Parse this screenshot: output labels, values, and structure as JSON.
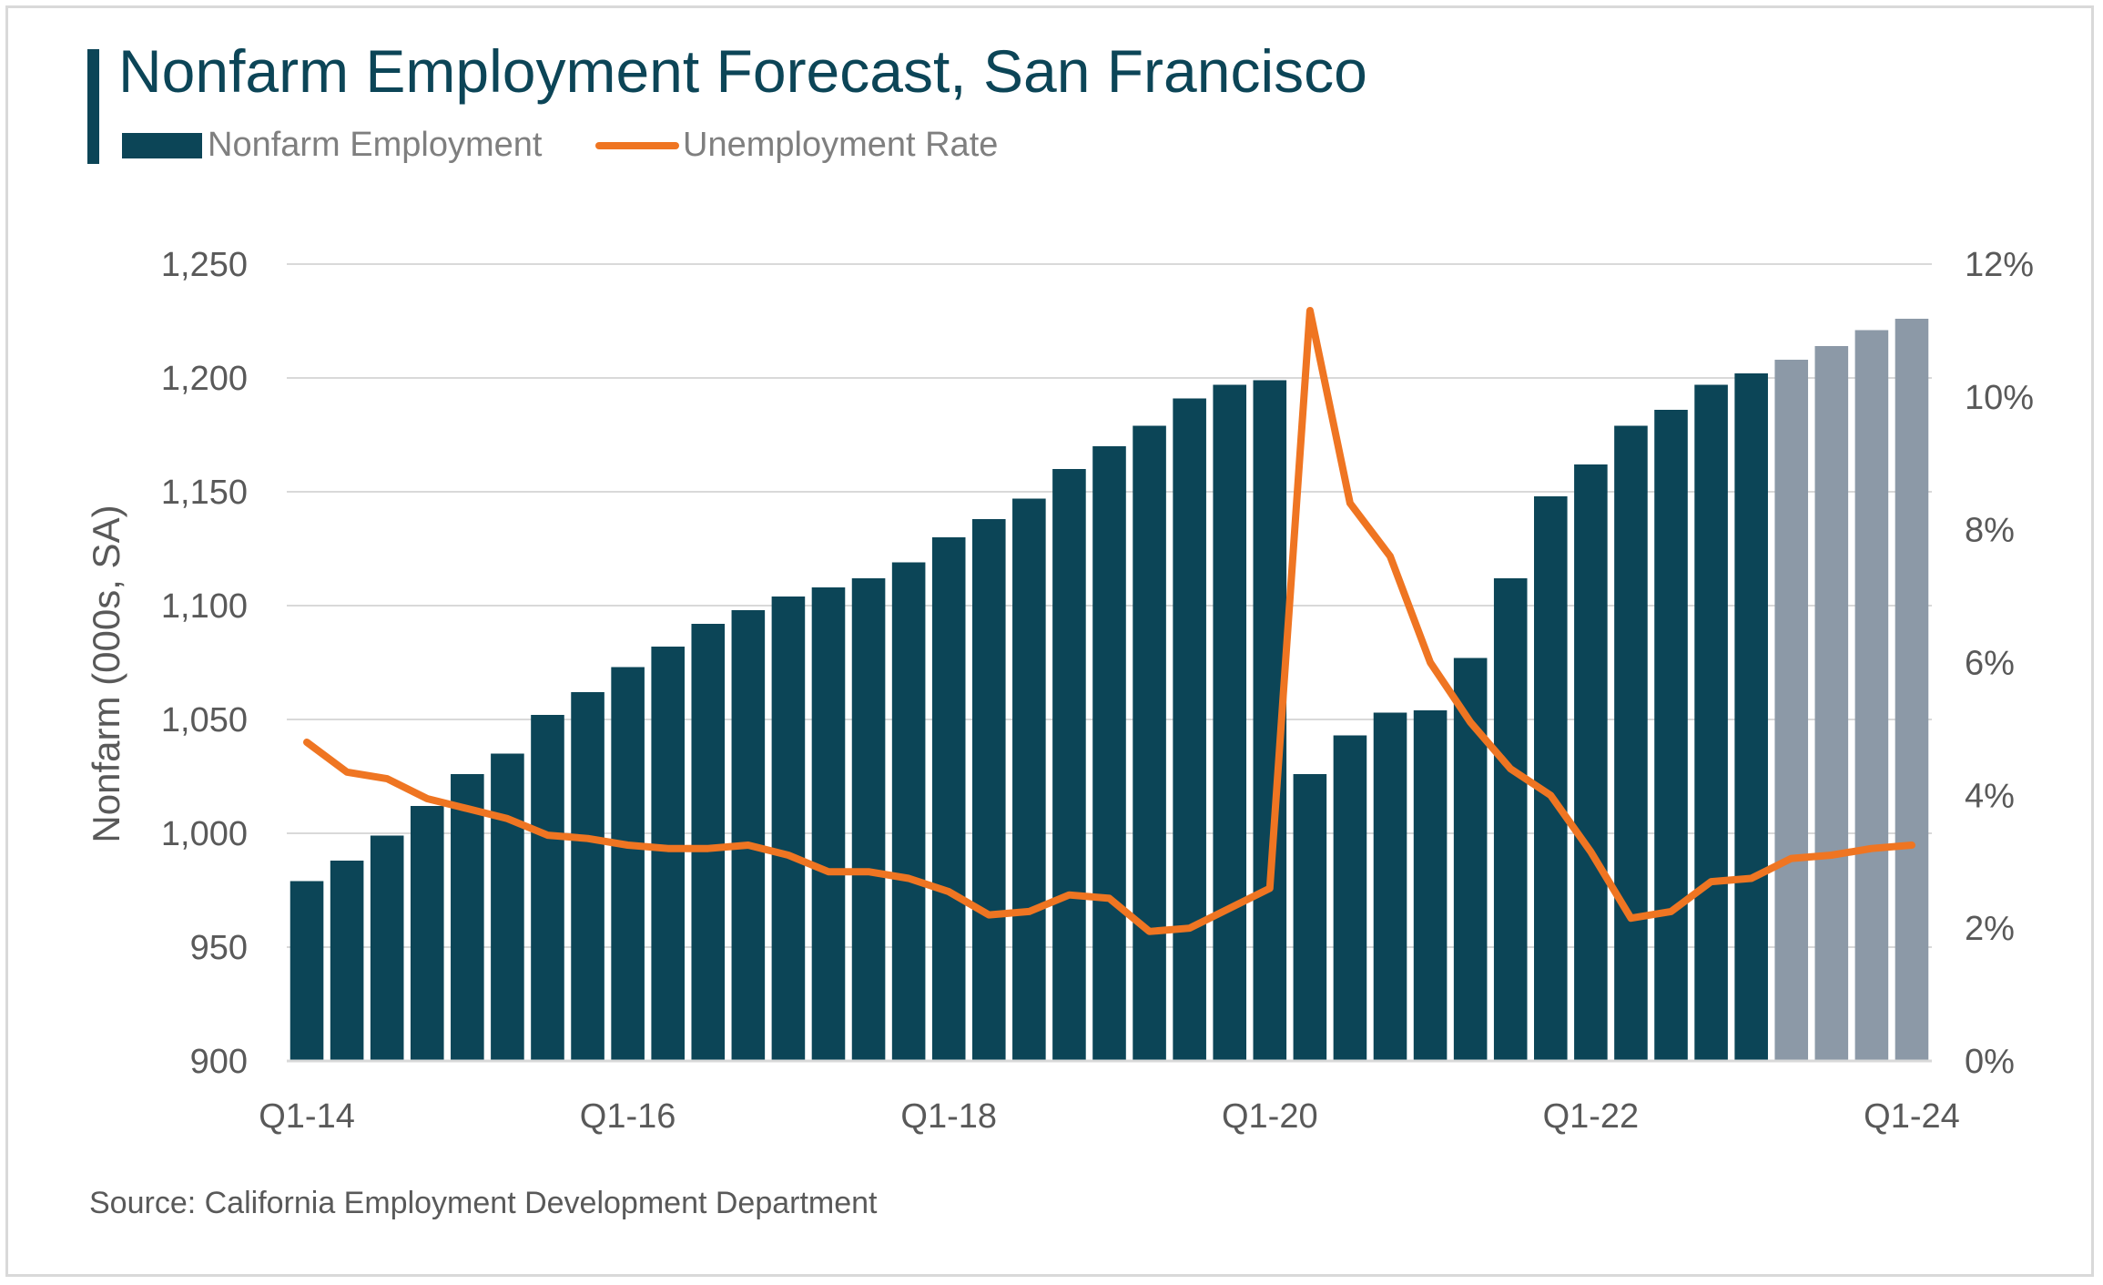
{
  "title": "Nonfarm Employment Forecast, San Francisco",
  "legend": {
    "bar_label": "Nonfarm Employment",
    "line_label": "Unemployment Rate"
  },
  "source": "Source: California Employment Development Department",
  "colors": {
    "title": "#0c4557",
    "bar_actual": "#0c4557",
    "bar_forecast": "#8c99a7",
    "line": "#ef7522",
    "grid": "#d9d9d9",
    "text": "#595959"
  },
  "chart_data": {
    "type": "bar",
    "title": "Nonfarm Employment Forecast, San Francisco",
    "ylabel": "Nonfarm (000s, SA)",
    "ylim": [
      900,
      1250
    ],
    "y2lim": [
      0,
      12
    ],
    "yticks": [
      "1,250",
      "1,200",
      "1,150",
      "1,100",
      "1,050",
      "1,000",
      "950",
      "900"
    ],
    "y2ticks": [
      "12%",
      "10%",
      "8%",
      "6%",
      "4%",
      "2%",
      "0%"
    ],
    "xticks": [
      {
        "index": 0,
        "label": "Q1-14"
      },
      {
        "index": 8,
        "label": "Q1-16"
      },
      {
        "index": 16,
        "label": "Q1-18"
      },
      {
        "index": 24,
        "label": "Q1-20"
      },
      {
        "index": 32,
        "label": "Q1-22"
      },
      {
        "index": 40,
        "label": "Q1-24"
      }
    ],
    "forecast_start_index": 37,
    "grid": true,
    "legend_position": "top-left",
    "series": [
      {
        "name": "Nonfarm Employment",
        "axis": "left",
        "type": "bar",
        "values": [
          979,
          988,
          999,
          1012,
          1026,
          1035,
          1052,
          1062,
          1073,
          1082,
          1092,
          1098,
          1104,
          1108,
          1112,
          1119,
          1130,
          1138,
          1147,
          1160,
          1170,
          1179,
          1191,
          1197,
          1199,
          1026,
          1043,
          1053,
          1054,
          1077,
          1112,
          1148,
          1162,
          1179,
          1186,
          1197,
          1202,
          1208,
          1214,
          1221,
          1226
        ]
      },
      {
        "name": "Unemployment Rate",
        "axis": "right",
        "type": "line",
        "values": [
          4.8,
          4.35,
          4.25,
          3.95,
          3.8,
          3.65,
          3.4,
          3.35,
          3.25,
          3.2,
          3.2,
          3.25,
          3.1,
          2.85,
          2.85,
          2.75,
          2.55,
          2.2,
          2.25,
          2.5,
          2.45,
          1.95,
          2.0,
          2.3,
          2.6,
          11.3,
          8.4,
          7.6,
          6.0,
          5.1,
          4.4,
          4.0,
          3.15,
          2.15,
          2.25,
          2.7,
          2.75,
          3.05,
          3.1,
          3.2,
          3.25
        ]
      }
    ]
  }
}
